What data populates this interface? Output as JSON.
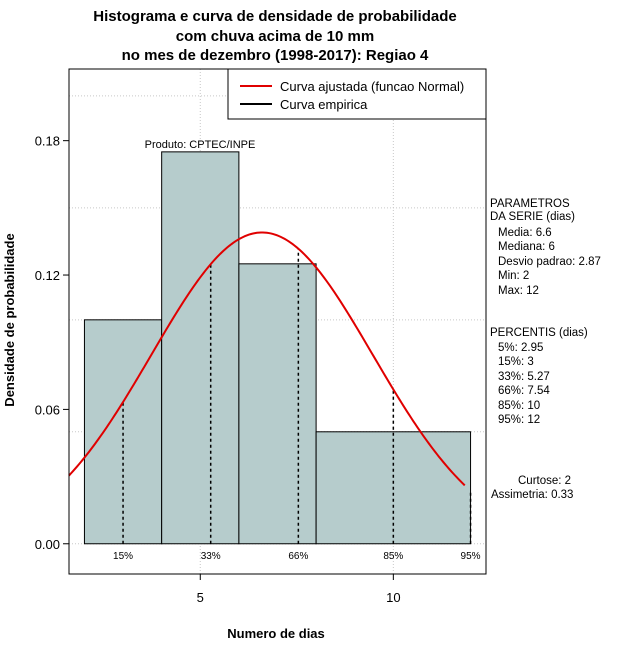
{
  "chart_data": {
    "type": "bar",
    "title_lines": [
      "Histograma e curva de densidade de probabilidade",
      "com chuva acima de 10 mm",
      "no mes de dezembro (1998-2017): Regiao 4"
    ],
    "xlabel": "Numero de dias",
    "ylabel": "Densidade de probabilidade",
    "xlim": [
      1.6,
      12.4
    ],
    "ylim": [
      -0.0135,
      0.212
    ],
    "x_ticks": [
      5,
      10
    ],
    "x_tick_labels": [
      "5",
      "10"
    ],
    "y_ticks": [
      0.0,
      0.06,
      0.12,
      0.18
    ],
    "y_tick_labels": [
      "0.00",
      "0.06",
      "0.12",
      "0.18"
    ],
    "grid": true,
    "bins": [
      {
        "x0": 2,
        "x1": 4,
        "density": 0.1
      },
      {
        "x0": 4,
        "x1": 6,
        "density": 0.175
      },
      {
        "x0": 6,
        "x1": 8,
        "density": 0.125
      },
      {
        "x0": 8,
        "x1": 12,
        "density": 0.05
      }
    ],
    "bar_color": "#b6cccc",
    "normal_curve": {
      "name": "Curva ajustada (funcao Normal)",
      "mean": 6.6,
      "sd": 2.87,
      "color": "#e00000"
    },
    "empirical_curve": {
      "name": "Curva empirica",
      "color": "#000000"
    },
    "percentile_lines": [
      {
        "label": "15%",
        "x": 3
      },
      {
        "label": "33%",
        "x": 5.27
      },
      {
        "label": "66%",
        "x": 7.54
      },
      {
        "label": "85%",
        "x": 10
      },
      {
        "label": "95%",
        "x": 12
      }
    ],
    "legend_position": "top-right",
    "source_note": "Produto: CPTEC/INPE"
  },
  "side_panel": {
    "params_heading_1": "PARAMETROS",
    "params_heading_2": "DA SERIE (dias)",
    "params": [
      "Media: 6.6",
      "Mediana: 6",
      "Desvio padrao: 2.87",
      "Min: 2",
      "Max: 12"
    ],
    "percentis_heading": "PERCENTIS (dias)",
    "percentis": [
      "5%: 2.95",
      "15%: 3",
      "33%: 5.27",
      "66%: 7.54",
      "85%: 10",
      "95%: 12"
    ],
    "curtose": "Curtose: 2",
    "assimetria": "Assimetria: 0.33"
  }
}
